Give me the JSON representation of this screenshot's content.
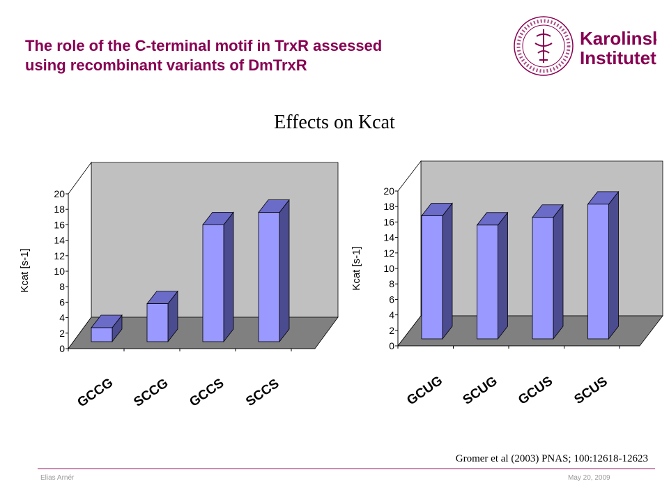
{
  "slide": {
    "title_line1": "The role of the C-terminal motif in TrxR assessed",
    "title_line2": "using recombinant variants of DmTrxR",
    "heading": "Effects on Kcat",
    "citation": "Gromer et al (2003) PNAS; 100:12618-12623",
    "footer_author": "Elias Arnér",
    "footer_date": "May 20, 2009"
  },
  "logo": {
    "wordmark_line1": "Karolinska",
    "wordmark_line2": "Institutet",
    "seal_text": "KAROLINSKA INSTITUTET · ANNO 1810",
    "color": "#870052"
  },
  "colors": {
    "brand": "#870052",
    "bar_front": "#9999FF",
    "bar_side": "#4B4B8F",
    "bar_top": "#6B6BC8",
    "back_wall": "#C0C0C0",
    "floor": "#808080"
  },
  "chart_data": [
    {
      "type": "bar",
      "title": "",
      "xlabel": "",
      "ylabel": "Kcat [s-1]",
      "ylim": [
        0,
        20
      ],
      "yticks": [
        "0",
        "2",
        "4",
        "6",
        "8",
        "10",
        "12",
        "14",
        "16",
        "18",
        "20"
      ],
      "categories": [
        "GCCG",
        "SCCG",
        "GCCS",
        "SCCS"
      ],
      "values": [
        1.8,
        4.9,
        15.1,
        16.7
      ],
      "grid": false,
      "three_d": true
    },
    {
      "type": "bar",
      "title": "",
      "xlabel": "",
      "ylabel": "Kcat [s-1]",
      "ylim": [
        0,
        20
      ],
      "yticks": [
        "0",
        "2",
        "4",
        "6",
        "8",
        "10",
        "12",
        "14",
        "16",
        "18",
        "20"
      ],
      "categories": [
        "GCUG",
        "SCUG",
        "GCUS",
        "SCUS"
      ],
      "values": [
        15.9,
        14.7,
        15.7,
        17.4
      ],
      "grid": false,
      "three_d": true
    }
  ]
}
